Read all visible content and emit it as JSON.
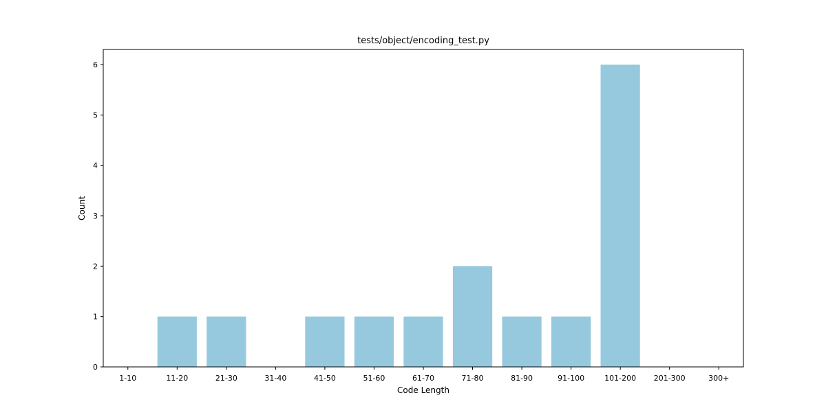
{
  "chart_data": {
    "type": "bar",
    "title": "tests/object/encoding_test.py",
    "xlabel": "Code Length",
    "ylabel": "Count",
    "categories": [
      "1-10",
      "11-20",
      "21-30",
      "31-40",
      "41-50",
      "51-60",
      "61-70",
      "71-80",
      "81-90",
      "91-100",
      "101-200",
      "201-300",
      "300+"
    ],
    "values": [
      0,
      1,
      1,
      0,
      1,
      1,
      1,
      2,
      1,
      1,
      6,
      0,
      0
    ],
    "yticks": [
      0,
      1,
      2,
      3,
      4,
      5,
      6
    ],
    "ylim": [
      0,
      6.3
    ],
    "grid": false,
    "bar_color": "#96c9dd"
  }
}
